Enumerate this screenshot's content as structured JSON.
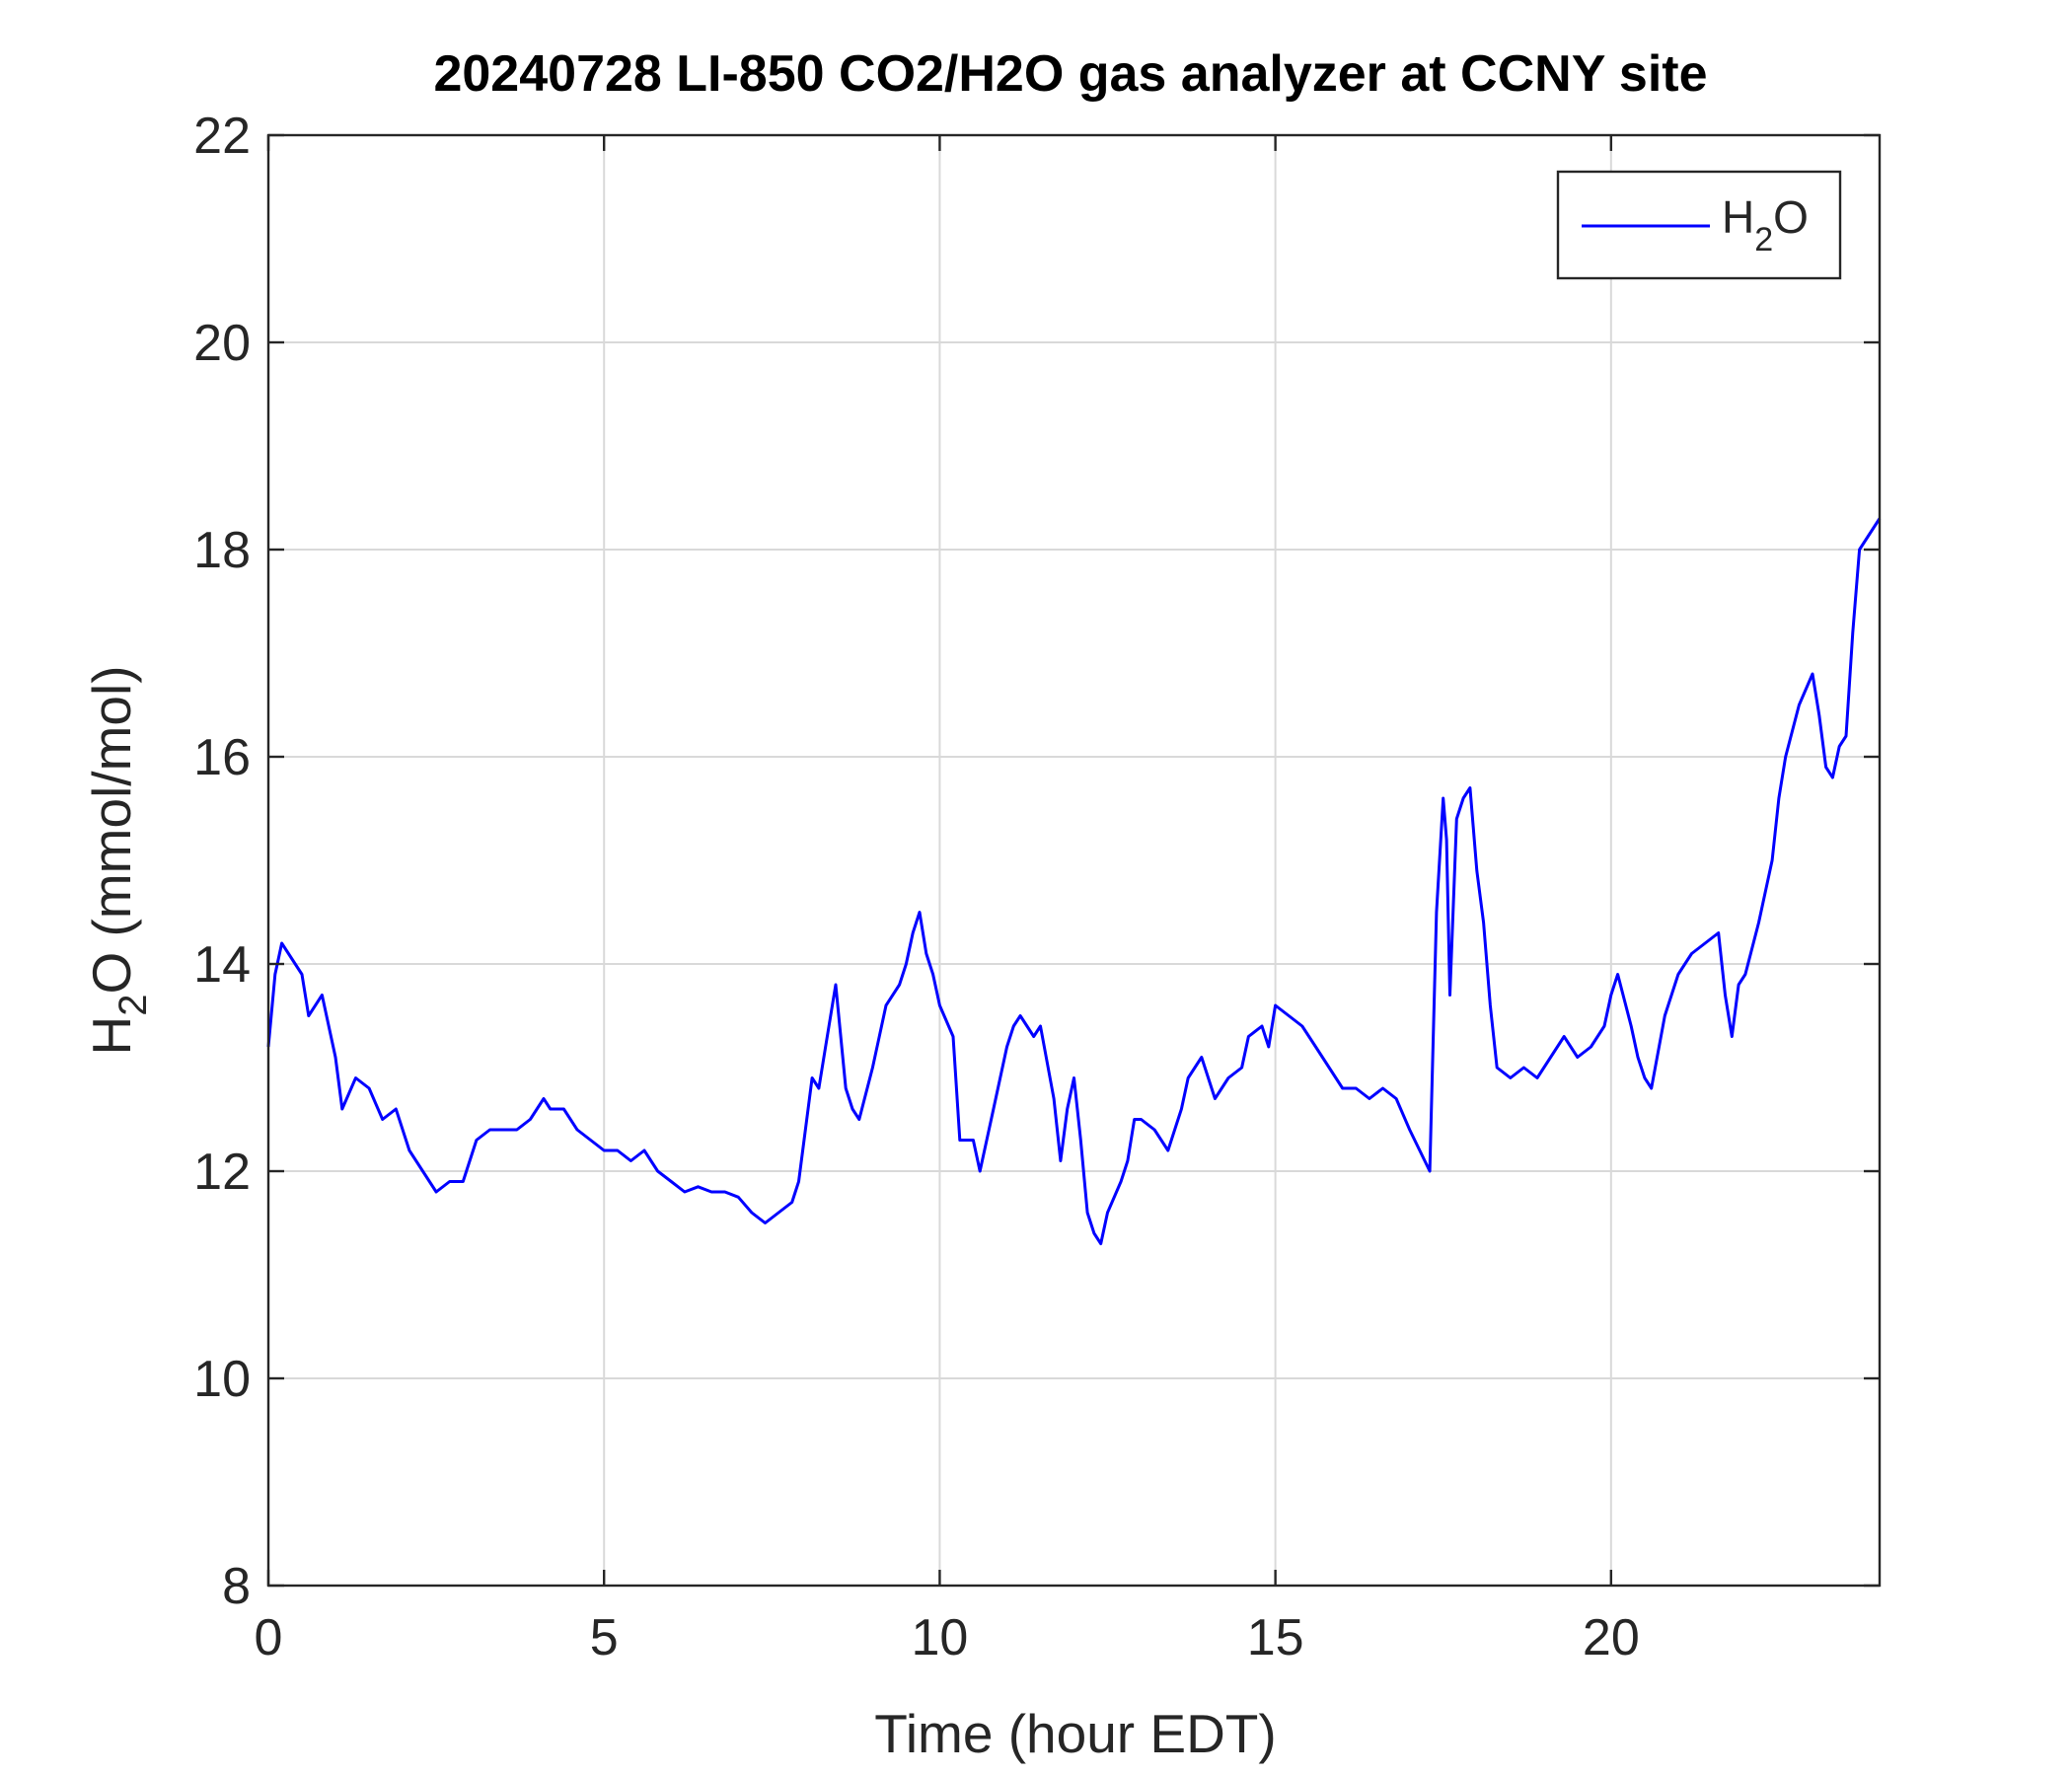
{
  "chart_data": {
    "type": "line",
    "title": "20240728 LI-850 CO2/H2O gas analyzer at CCNY site",
    "xlabel": "Time (hour EDT)",
    "ylabel": {
      "base": "H",
      "sub": "2",
      "rest": "O (mmol/mol)"
    },
    "xlim": [
      0,
      24
    ],
    "ylim": [
      8,
      22
    ],
    "xticks": [
      0,
      5,
      10,
      15,
      20
    ],
    "yticks": [
      8,
      10,
      12,
      14,
      16,
      18,
      20,
      22
    ],
    "grid": true,
    "legend": {
      "position": "top-right"
    },
    "series": [
      {
        "name": {
          "base": "H",
          "sub": "2",
          "rest": "O"
        },
        "color": "#0000ff",
        "x": [
          0.0,
          0.1,
          0.2,
          0.3,
          0.5,
          0.6,
          0.8,
          1.0,
          1.1,
          1.3,
          1.5,
          1.7,
          1.9,
          2.1,
          2.3,
          2.5,
          2.7,
          2.9,
          3.1,
          3.3,
          3.5,
          3.7,
          3.9,
          4.1,
          4.2,
          4.4,
          4.6,
          4.8,
          5.0,
          5.2,
          5.4,
          5.6,
          5.8,
          6.0,
          6.2,
          6.4,
          6.6,
          6.8,
          7.0,
          7.2,
          7.4,
          7.6,
          7.8,
          7.9,
          8.0,
          8.1,
          8.2,
          8.3,
          8.45,
          8.6,
          8.7,
          8.8,
          9.0,
          9.2,
          9.4,
          9.5,
          9.6,
          9.7,
          9.8,
          9.9,
          10.0,
          10.2,
          10.3,
          10.5,
          10.6,
          10.8,
          11.0,
          11.1,
          11.2,
          11.4,
          11.5,
          11.7,
          11.8,
          11.9,
          12.0,
          12.1,
          12.2,
          12.3,
          12.4,
          12.5,
          12.7,
          12.8,
          12.9,
          13.0,
          13.2,
          13.4,
          13.6,
          13.7,
          13.9,
          14.1,
          14.3,
          14.5,
          14.6,
          14.8,
          14.9,
          15.0,
          15.2,
          15.4,
          15.6,
          15.8,
          16.0,
          16.2,
          16.4,
          16.6,
          16.8,
          17.0,
          17.15,
          17.3,
          17.4,
          17.5,
          17.55,
          17.6,
          17.7,
          17.8,
          17.9,
          18.0,
          18.1,
          18.2,
          18.3,
          18.5,
          18.7,
          18.9,
          19.1,
          19.3,
          19.5,
          19.7,
          19.9,
          20.0,
          20.1,
          20.3,
          20.4,
          20.5,
          20.6,
          20.8,
          21.0,
          21.2,
          21.4,
          21.6,
          21.7,
          21.8,
          21.9,
          22.0,
          22.2,
          22.4,
          22.5,
          22.6,
          22.8,
          23.0,
          23.1,
          23.2,
          23.3,
          23.4,
          23.5,
          23.6,
          23.7,
          23.8,
          23.9,
          24.0
        ],
        "y": [
          13.2,
          13.9,
          14.2,
          14.1,
          13.9,
          13.5,
          13.7,
          13.1,
          12.6,
          12.9,
          12.8,
          12.5,
          12.6,
          12.2,
          12.0,
          11.8,
          11.9,
          11.9,
          12.3,
          12.4,
          12.4,
          12.4,
          12.5,
          12.7,
          12.6,
          12.6,
          12.4,
          12.3,
          12.2,
          12.2,
          12.1,
          12.2,
          12.0,
          11.9,
          11.8,
          11.85,
          11.8,
          11.8,
          11.75,
          11.6,
          11.5,
          11.6,
          11.7,
          11.9,
          12.4,
          12.9,
          12.8,
          13.2,
          13.8,
          12.8,
          12.6,
          12.5,
          13.0,
          13.6,
          13.8,
          14.0,
          14.3,
          14.5,
          14.1,
          13.9,
          13.6,
          13.3,
          12.3,
          12.3,
          12.0,
          12.6,
          13.2,
          13.4,
          13.5,
          13.3,
          13.4,
          12.7,
          12.1,
          12.6,
          12.9,
          12.3,
          11.6,
          11.4,
          11.3,
          11.6,
          11.9,
          12.1,
          12.5,
          12.5,
          12.4,
          12.2,
          12.6,
          12.9,
          13.1,
          12.7,
          12.9,
          13.0,
          13.3,
          13.4,
          13.2,
          13.6,
          13.5,
          13.4,
          13.2,
          13.0,
          12.8,
          12.8,
          12.7,
          12.8,
          12.7,
          12.4,
          12.2,
          12.0,
          14.5,
          15.6,
          15.2,
          13.7,
          15.4,
          15.6,
          15.7,
          14.9,
          14.4,
          13.6,
          13.0,
          12.9,
          13.0,
          12.9,
          13.1,
          13.3,
          13.1,
          13.2,
          13.4,
          13.7,
          13.9,
          13.4,
          13.1,
          12.9,
          12.8,
          13.5,
          13.9,
          14.1,
          14.2,
          14.3,
          13.7,
          13.3,
          13.8,
          13.9,
          14.4,
          15.0,
          15.6,
          16.0,
          16.5,
          16.8,
          16.4,
          15.9,
          15.8,
          16.1,
          16.2,
          17.2,
          18.0,
          18.1,
          18.2,
          18.3
        ]
      }
    ]
  }
}
